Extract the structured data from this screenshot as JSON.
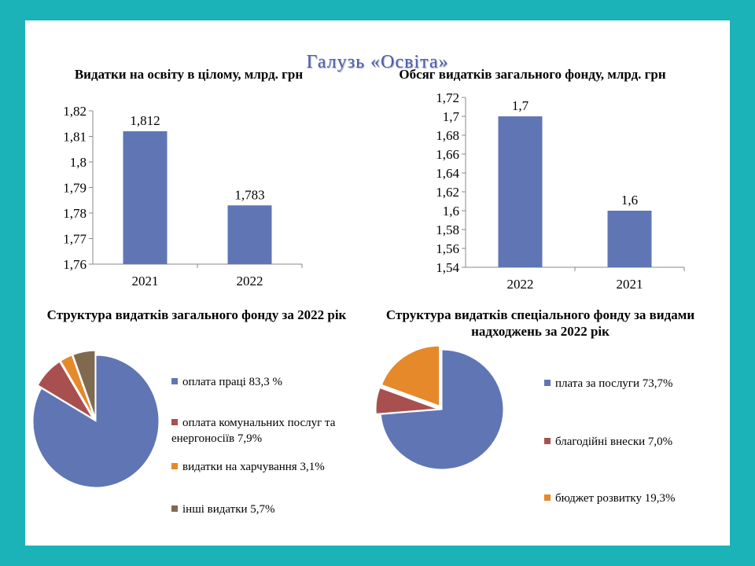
{
  "page_title": "Галузь «Освіта»",
  "chart_data": [
    {
      "type": "bar",
      "title": "Видатки на освіту в цілому, млрд. грн",
      "categories": [
        "2021",
        "2022"
      ],
      "values": [
        1.812,
        1.783
      ],
      "value_labels": [
        "1,812",
        "1,783"
      ],
      "ylim": [
        1.76,
        1.82
      ],
      "yticks": [
        "1,76",
        "1,77",
        "1,78",
        "1,79",
        "1,8",
        "1,81",
        "1,82"
      ],
      "color": "#6075b4"
    },
    {
      "type": "bar",
      "title": "Обсяг видатків  загального фонду, млрд. грн",
      "categories": [
        "2022",
        "2021"
      ],
      "values": [
        1.7,
        1.6
      ],
      "value_labels": [
        "1,7",
        "1,6"
      ],
      "ylim": [
        1.54,
        1.72
      ],
      "yticks": [
        "1,54",
        "1,56",
        "1,58",
        "1,6",
        "1,62",
        "1,64",
        "1,66",
        "1,68",
        "1,7",
        "1,72"
      ],
      "color": "#6075b4"
    },
    {
      "type": "pie",
      "title": "Структура  видатків  загального фонду за 2022 рік",
      "slices": [
        {
          "label": "оплата праці 83,3  %",
          "value": 83.3,
          "color": "#6075b4"
        },
        {
          "label": "оплата комунальних послуг та енергоносіїв 7,9%",
          "value": 7.9,
          "color": "#a8504f"
        },
        {
          "label": "видатки на харчування 3,1%",
          "value": 3.1,
          "color": "#e5892a"
        },
        {
          "label": "інші видатки 5,7%",
          "value": 5.7,
          "color": "#7f6a50"
        }
      ]
    },
    {
      "type": "pie",
      "title": "Структура  видатків  спеціального фонду за видами надходжень за 2022 рік",
      "slices": [
        {
          "label": "плата за послуги 73,7%",
          "value": 73.7,
          "color": "#6075b4"
        },
        {
          "label": "благодійні внески 7,0%",
          "value": 7.0,
          "color": "#a8504f"
        },
        {
          "label": "бюджет розвитку 19,3%",
          "value": 19.3,
          "color": "#e5892a"
        }
      ]
    }
  ]
}
